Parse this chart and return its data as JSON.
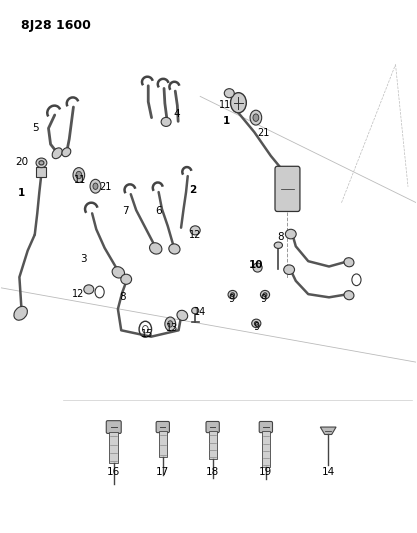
{
  "title": "8J28 1600",
  "background_color": "#ffffff",
  "line_color": "#333333",
  "label_color": "#000000",
  "fig_width": 4.17,
  "fig_height": 5.33,
  "dpi": 100
}
